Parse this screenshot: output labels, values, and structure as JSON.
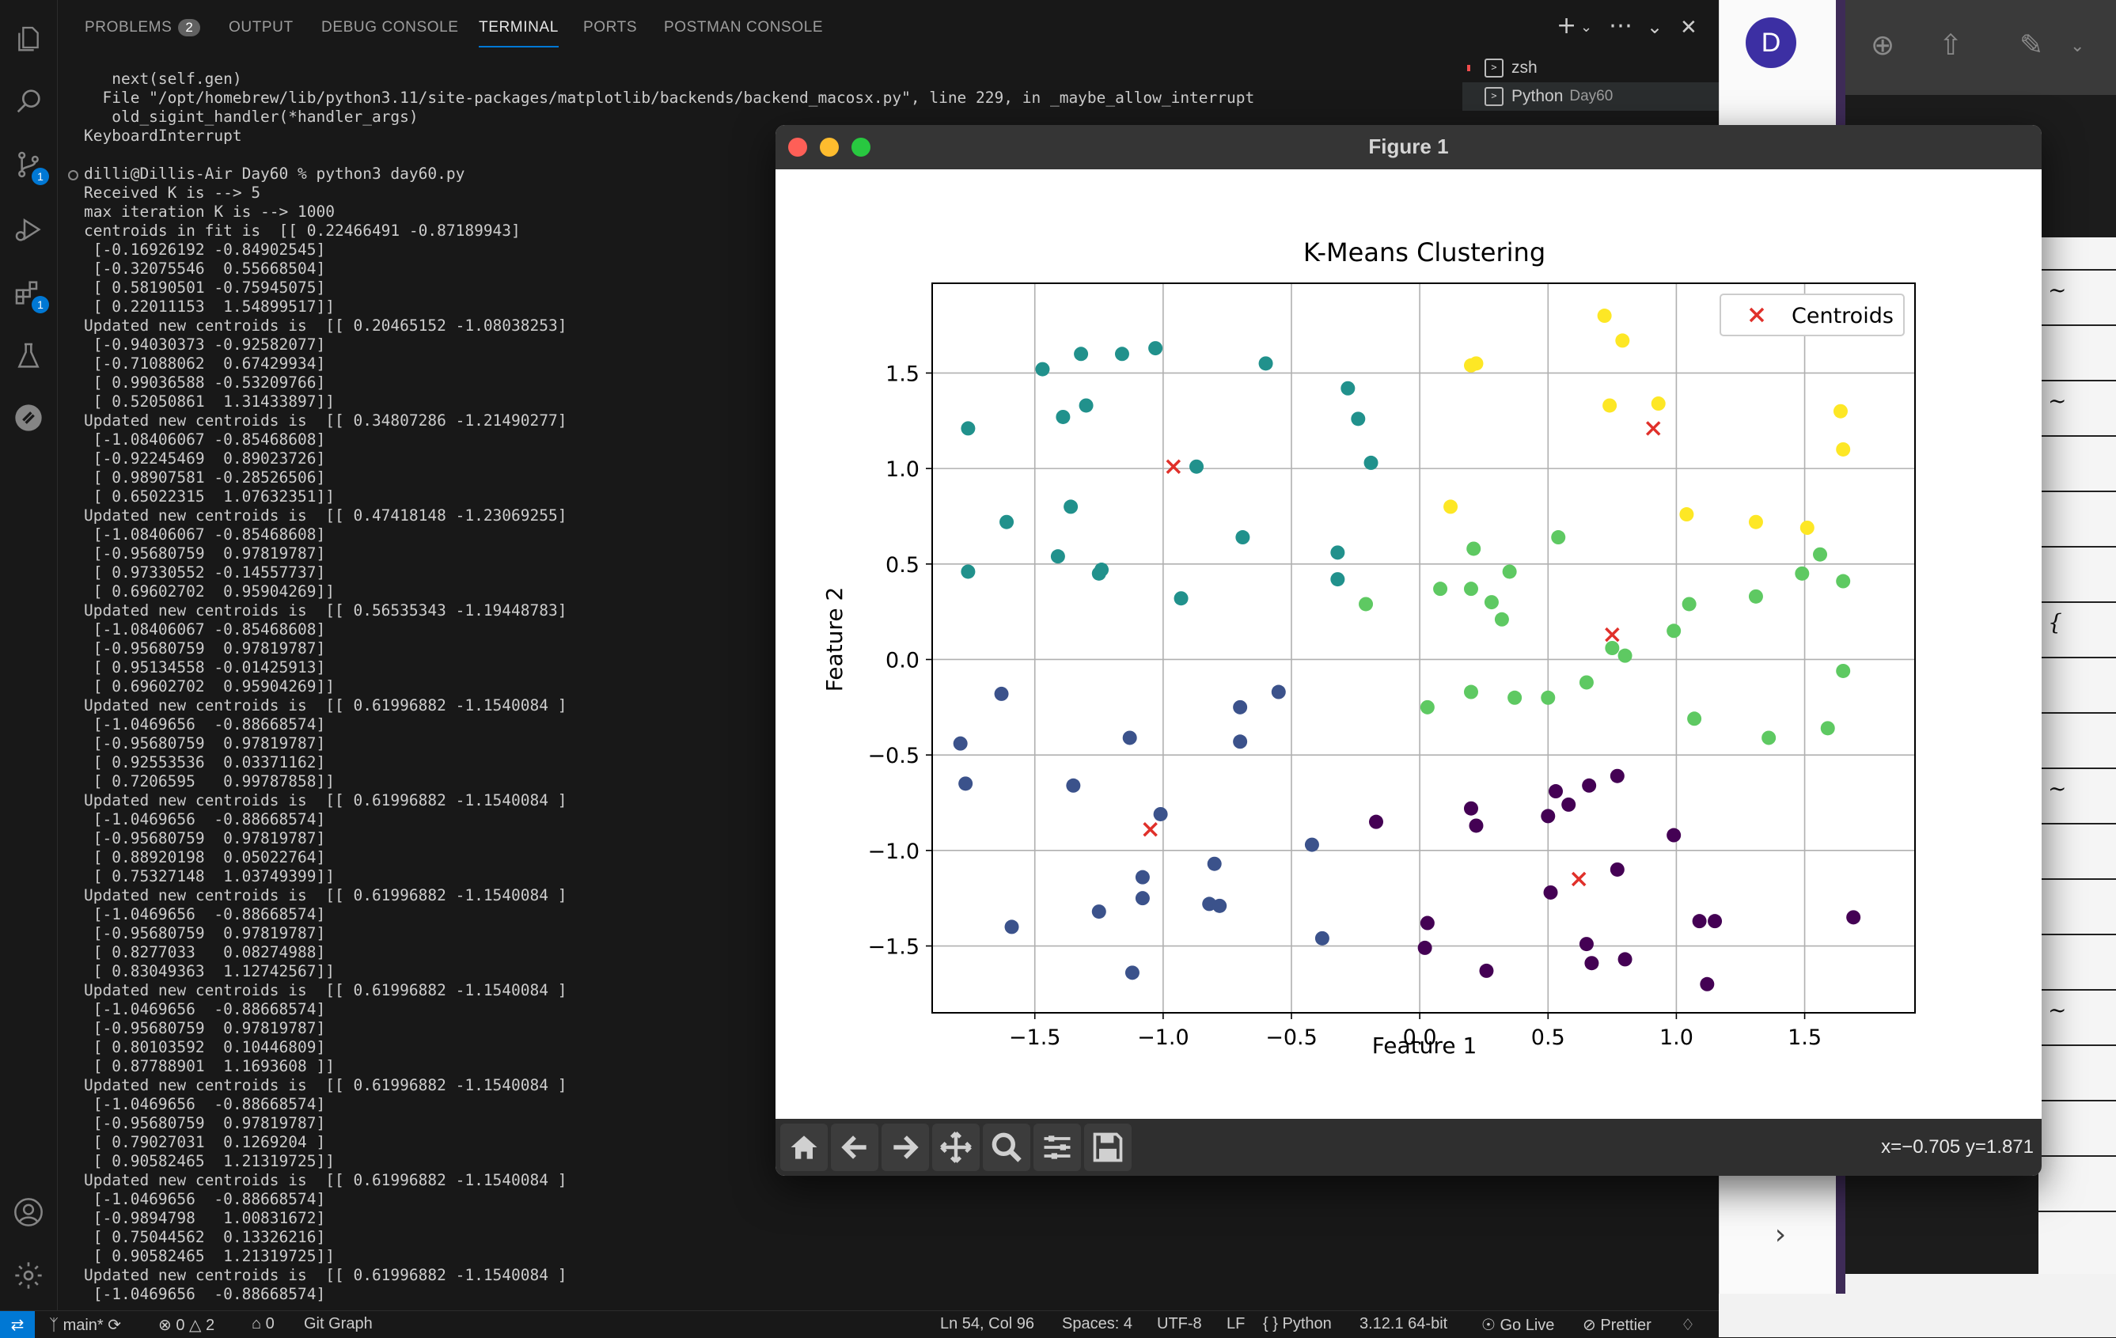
{
  "panel": {
    "tabs": [
      {
        "label": "PROBLEMS",
        "count": "2"
      },
      {
        "label": "OUTPUT"
      },
      {
        "label": "DEBUG CONSOLE"
      },
      {
        "label": "TERMINAL"
      },
      {
        "label": "PORTS"
      },
      {
        "label": "POSTMAN CONSOLE"
      }
    ],
    "active_tab": "TERMINAL"
  },
  "activity_bar": {
    "scm_badge": "1",
    "extensions_badge": "1"
  },
  "terminal_list": [
    {
      "name": "zsh",
      "sub": ""
    },
    {
      "name": "Python",
      "sub": "Day60"
    }
  ],
  "terminal": {
    "lines": [
      "   next(self.gen)",
      "  File \"/opt/homebrew/lib/python3.11/site-packages/matplotlib/backends/backend_macosx.py\", line 229, in _maybe_allow_interrupt",
      "   old_sigint_handler(*handler_args)",
      "KeyboardInterrupt",
      "",
      "dilli@Dillis-Air Day60 % python3 day60.py",
      "Received K is --> 5",
      "max iteration K is --> 1000",
      "centroids in fit is  [[ 0.22466491 -0.87189943]",
      " [-0.16926192 -0.84902545]",
      " [-0.32075546  0.55668504]",
      " [ 0.58190501 -0.75945075]",
      " [ 0.22011153  1.54899517]]",
      "Updated new centroids is  [[ 0.20465152 -1.08038253]",
      " [-0.94030373 -0.92582077]",
      " [-0.71088062  0.67429934]",
      " [ 0.99036588 -0.53209766]",
      " [ 0.52050861  1.31433897]]",
      "Updated new centroids is  [[ 0.34807286 -1.21490277]",
      " [-1.08406067 -0.85468608]",
      " [-0.92245469  0.89023726]",
      " [ 0.98907581 -0.28526506]",
      " [ 0.65022315  1.07632351]]",
      "Updated new centroids is  [[ 0.47418148 -1.23069255]",
      " [-1.08406067 -0.85468608]",
      " [-0.95680759  0.97819787]",
      " [ 0.97330552 -0.14557737]",
      " [ 0.69602702  0.95904269]]",
      "Updated new centroids is  [[ 0.56535343 -1.19448783]",
      " [-1.08406067 -0.85468608]",
      " [-0.95680759  0.97819787]",
      " [ 0.95134558 -0.01425913]",
      " [ 0.69602702  0.95904269]]",
      "Updated new centroids is  [[ 0.61996882 -1.1540084 ]",
      " [-1.0469656  -0.88668574]",
      " [-0.95680759  0.97819787]",
      " [ 0.92553536  0.03371162]",
      " [ 0.7206595   0.99787858]]",
      "Updated new centroids is  [[ 0.61996882 -1.1540084 ]",
      " [-1.0469656  -0.88668574]",
      " [-0.95680759  0.97819787]",
      " [ 0.88920198  0.05022764]",
      " [ 0.75327148  1.03749399]]",
      "Updated new centroids is  [[ 0.61996882 -1.1540084 ]",
      " [-1.0469656  -0.88668574]",
      " [-0.95680759  0.97819787]",
      " [ 0.8277033   0.08274988]",
      " [ 0.83049363  1.12742567]]",
      "Updated new centroids is  [[ 0.61996882 -1.1540084 ]",
      " [-1.0469656  -0.88668574]",
      " [-0.95680759  0.97819787]",
      " [ 0.80103592  0.10446809]",
      " [ 0.87788901  1.1693608 ]]",
      "Updated new centroids is  [[ 0.61996882 -1.1540084 ]",
      " [-1.0469656  -0.88668574]",
      " [-0.95680759  0.97819787]",
      " [ 0.79027031  0.1269204 ]",
      " [ 0.90582465  1.21319725]]",
      "Updated new centroids is  [[ 0.61996882 -1.1540084 ]",
      " [-1.0469656  -0.88668574]",
      " [-0.9894798   1.00831672]",
      " [ 0.75044562  0.13326216]",
      " [ 0.90582465  1.21319725]]",
      "Updated new centroids is  [[ 0.61996882 -1.1540084 ]",
      " [-1.0469656  -0.88668574]"
    ]
  },
  "status_bar": {
    "branch": "main*",
    "errors": "0",
    "warnings": "2",
    "ports": "0",
    "git_graph": "Git Graph",
    "cursor": "Ln 54, Col 96",
    "spaces": "Spaces: 4",
    "encoding": "UTF-8",
    "eol": "LF",
    "language": "Python",
    "interpreter": "3.12.1 64-bit",
    "go_live": "Go Live",
    "prettier": "Prettier"
  },
  "browser": {
    "avatar_letter": "D"
  },
  "figure": {
    "window_title": "Figure 1",
    "coord_readout": "x=−0.705 y=1.871",
    "toolbar_icons": [
      "home-icon",
      "back-icon",
      "forward-icon",
      "pan-icon",
      "zoom-icon",
      "configure-icon",
      "save-icon"
    ]
  },
  "chart_data": {
    "type": "scatter",
    "title": "K-Means Clustering",
    "xlabel": "Feature 1",
    "ylabel": "Feature 2",
    "xlim": [
      -1.9,
      1.93
    ],
    "ylim": [
      -1.85,
      1.97
    ],
    "xticks": [
      -1.5,
      -1.0,
      -0.5,
      0.0,
      0.5,
      1.0,
      1.5
    ],
    "yticks": [
      -1.5,
      -1.0,
      -0.5,
      0.0,
      0.5,
      1.0,
      1.5
    ],
    "xtick_labels": [
      "−1.5",
      "−1.0",
      "−0.5",
      "0.0",
      "0.5",
      "1.0",
      "1.5"
    ],
    "ytick_labels": [
      "−1.5",
      "−1.0",
      "−0.5",
      "0.0",
      "0.5",
      "1.0",
      "1.5"
    ],
    "grid": true,
    "legend": {
      "placement": "top-right",
      "entries": [
        {
          "label": "Centroids",
          "marker": "x",
          "color": "#e0302a"
        }
      ]
    },
    "cluster_colors": [
      "#440154",
      "#3b528b",
      "#21918c",
      "#5ec962",
      "#fde725"
    ],
    "centroids": {
      "color": "#e0302a",
      "x": [
        0.62,
        -1.05,
        -0.96,
        0.75,
        0.91
      ],
      "y": [
        -1.15,
        -0.89,
        1.01,
        0.13,
        1.21
      ]
    },
    "series": [
      {
        "cluster": 0,
        "points": [
          [
            0.2,
            -0.78
          ],
          [
            0.22,
            -0.87
          ],
          [
            0.5,
            -0.82
          ],
          [
            0.53,
            -0.69
          ],
          [
            0.58,
            -0.76
          ],
          [
            0.66,
            -0.66
          ],
          [
            0.77,
            -0.61
          ],
          [
            -0.17,
            -0.85
          ],
          [
            0.99,
            -0.92
          ],
          [
            0.77,
            -1.1
          ],
          [
            0.51,
            -1.22
          ],
          [
            0.03,
            -1.38
          ],
          [
            0.02,
            -1.51
          ],
          [
            0.26,
            -1.63
          ],
          [
            0.65,
            -1.49
          ],
          [
            0.67,
            -1.59
          ],
          [
            0.8,
            -1.57
          ],
          [
            1.09,
            -1.37
          ],
          [
            1.15,
            -1.37
          ],
          [
            1.69,
            -1.35
          ],
          [
            1.12,
            -1.7
          ]
        ]
      },
      {
        "cluster": 1,
        "points": [
          [
            -1.79,
            -0.44
          ],
          [
            -1.77,
            -0.65
          ],
          [
            -1.63,
            -0.18
          ],
          [
            -1.35,
            -0.66
          ],
          [
            -1.13,
            -0.41
          ],
          [
            -0.7,
            -0.25
          ],
          [
            -0.55,
            -0.17
          ],
          [
            -0.7,
            -0.43
          ],
          [
            -1.01,
            -0.81
          ],
          [
            -1.08,
            -1.14
          ],
          [
            -1.08,
            -1.25
          ],
          [
            -0.8,
            -1.07
          ],
          [
            -0.82,
            -1.28
          ],
          [
            -0.78,
            -1.29
          ],
          [
            -1.25,
            -1.32
          ],
          [
            -1.59,
            -1.4
          ],
          [
            -1.12,
            -1.64
          ],
          [
            -0.42,
            -0.97
          ],
          [
            -0.38,
            -1.46
          ]
        ]
      },
      {
        "cluster": 2,
        "points": [
          [
            -1.76,
            1.21
          ],
          [
            -1.47,
            1.52
          ],
          [
            -1.39,
            1.27
          ],
          [
            -1.32,
            1.6
          ],
          [
            -1.3,
            1.33
          ],
          [
            -1.16,
            1.6
          ],
          [
            -1.03,
            1.63
          ],
          [
            -0.6,
            1.55
          ],
          [
            -0.28,
            1.42
          ],
          [
            -0.24,
            1.26
          ],
          [
            -0.19,
            1.03
          ],
          [
            -0.87,
            1.01
          ],
          [
            -1.61,
            0.72
          ],
          [
            -1.36,
            0.8
          ],
          [
            -1.41,
            0.54
          ],
          [
            -1.25,
            0.45
          ],
          [
            -1.24,
            0.47
          ],
          [
            -1.76,
            0.46
          ],
          [
            -0.69,
            0.64
          ],
          [
            -0.32,
            0.56
          ],
          [
            -0.32,
            0.42
          ],
          [
            -0.93,
            0.32
          ]
        ]
      },
      {
        "cluster": 3,
        "points": [
          [
            0.54,
            0.64
          ],
          [
            0.21,
            0.58
          ],
          [
            0.35,
            0.46
          ],
          [
            0.08,
            0.37
          ],
          [
            0.2,
            0.37
          ],
          [
            0.28,
            0.3
          ],
          [
            0.32,
            0.21
          ],
          [
            -0.21,
            0.29
          ],
          [
            1.31,
            0.33
          ],
          [
            1.05,
            0.29
          ],
          [
            1.49,
            0.45
          ],
          [
            1.56,
            0.55
          ],
          [
            1.65,
            0.41
          ],
          [
            0.99,
            0.15
          ],
          [
            0.75,
            0.06
          ],
          [
            0.8,
            0.02
          ],
          [
            1.65,
            -0.06
          ],
          [
            0.03,
            -0.25
          ],
          [
            0.2,
            -0.17
          ],
          [
            0.37,
            -0.2
          ],
          [
            0.5,
            -0.2
          ],
          [
            0.65,
            -0.12
          ],
          [
            1.07,
            -0.31
          ],
          [
            1.36,
            -0.41
          ],
          [
            1.59,
            -0.36
          ]
        ]
      },
      {
        "cluster": 4,
        "points": [
          [
            0.72,
            1.8
          ],
          [
            0.79,
            1.67
          ],
          [
            0.2,
            1.54
          ],
          [
            0.22,
            1.55
          ],
          [
            0.74,
            1.33
          ],
          [
            0.93,
            1.34
          ],
          [
            1.64,
            1.3
          ],
          [
            1.65,
            1.1
          ],
          [
            0.12,
            0.8
          ],
          [
            1.04,
            0.76
          ],
          [
            1.31,
            0.72
          ],
          [
            1.51,
            0.69
          ]
        ]
      }
    ]
  }
}
